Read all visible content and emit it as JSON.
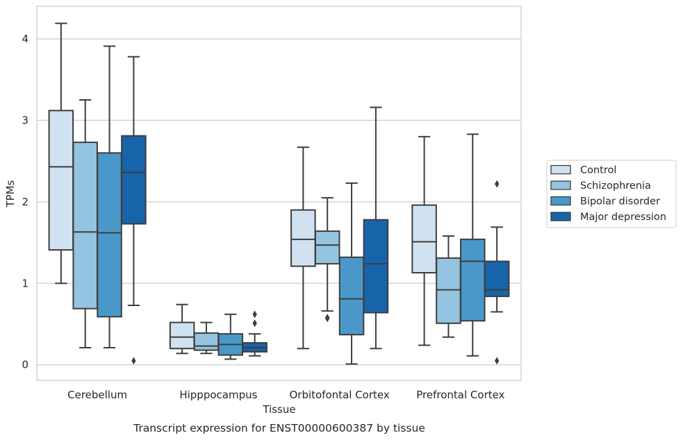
{
  "chart_data": {
    "type": "box",
    "xlabel": "Tissue",
    "ylabel": "TPMs",
    "caption": "Transcript expression for ENST00000600387 by tissue",
    "categories": [
      "Cerebellum",
      "Hipppocampus",
      "Orbitofontal Cortex",
      "Prefrontal Cortex"
    ],
    "yticks": [
      0,
      1,
      2,
      3,
      4
    ],
    "ylim": [
      -0.19,
      4.4
    ],
    "grid": "horizontal",
    "legend_position": "right",
    "series": [
      {
        "name": "Control",
        "color": "#d0e1f2",
        "boxes": [
          {
            "whislo": 1.0,
            "q1": 1.41,
            "med": 2.43,
            "q3": 3.12,
            "whishi": 4.19,
            "fliers": []
          },
          {
            "whislo": 0.14,
            "q1": 0.2,
            "med": 0.34,
            "q3": 0.52,
            "whishi": 0.74,
            "fliers": []
          },
          {
            "whislo": 0.2,
            "q1": 1.21,
            "med": 1.54,
            "q3": 1.9,
            "whishi": 2.67,
            "fliers": []
          },
          {
            "whislo": 0.24,
            "q1": 1.13,
            "med": 1.51,
            "q3": 1.96,
            "whishi": 2.8,
            "fliers": []
          }
        ]
      },
      {
        "name": "Schizophrenia",
        "color": "#94c4df",
        "boxes": [
          {
            "whislo": 0.21,
            "q1": 0.69,
            "med": 1.63,
            "q3": 2.73,
            "whishi": 3.25,
            "fliers": []
          },
          {
            "whislo": 0.14,
            "q1": 0.18,
            "med": 0.23,
            "q3": 0.39,
            "whishi": 0.52,
            "fliers": []
          },
          {
            "whislo": 0.66,
            "q1": 1.24,
            "med": 1.47,
            "q3": 1.64,
            "whishi": 2.05,
            "fliers": [
              0.57,
              0.58
            ]
          },
          {
            "whislo": 0.34,
            "q1": 0.51,
            "med": 0.92,
            "q3": 1.31,
            "whishi": 1.58,
            "fliers": []
          }
        ]
      },
      {
        "name": "Bipolar disorder",
        "color": "#4a98c9",
        "boxes": [
          {
            "whislo": 0.21,
            "q1": 0.59,
            "med": 1.62,
            "q3": 2.6,
            "whishi": 3.91,
            "fliers": []
          },
          {
            "whislo": 0.07,
            "q1": 0.12,
            "med": 0.25,
            "q3": 0.38,
            "whishi": 0.62,
            "fliers": []
          },
          {
            "whislo": 0.01,
            "q1": 0.37,
            "med": 0.81,
            "q3": 1.32,
            "whishi": 2.23,
            "fliers": []
          },
          {
            "whislo": 0.11,
            "q1": 0.54,
            "med": 1.27,
            "q3": 1.54,
            "whishi": 2.83,
            "fliers": []
          }
        ]
      },
      {
        "name": "Major depression",
        "color": "#1764ab",
        "boxes": [
          {
            "whislo": 0.73,
            "q1": 1.73,
            "med": 2.36,
            "q3": 2.81,
            "whishi": 3.78,
            "fliers": [
              0.05
            ]
          },
          {
            "whislo": 0.11,
            "q1": 0.16,
            "med": 0.21,
            "q3": 0.27,
            "whishi": 0.38,
            "fliers": [
              0.51,
              0.62
            ]
          },
          {
            "whislo": 0.2,
            "q1": 0.64,
            "med": 1.24,
            "q3": 1.78,
            "whishi": 3.16,
            "fliers": []
          },
          {
            "whislo": 0.65,
            "q1": 0.84,
            "med": 0.92,
            "q3": 1.27,
            "whishi": 1.69,
            "fliers": [
              0.05,
              2.22
            ]
          }
        ]
      }
    ]
  }
}
